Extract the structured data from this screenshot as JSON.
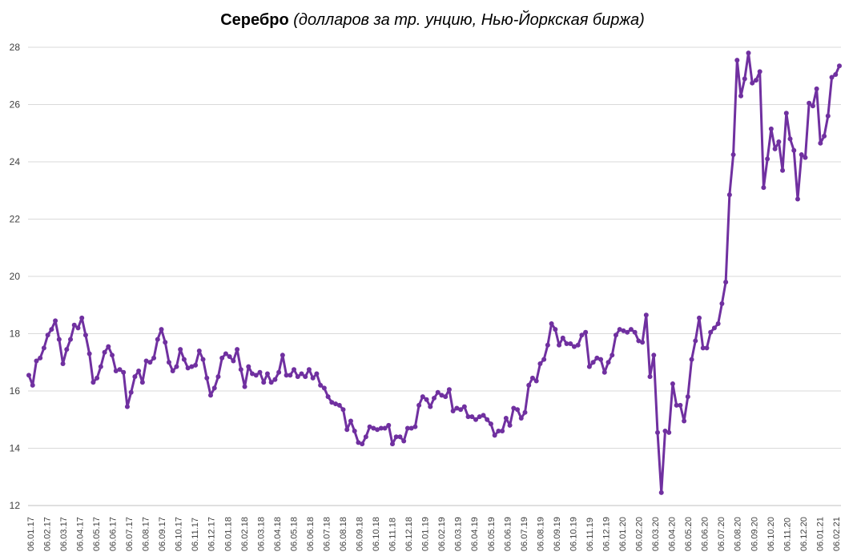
{
  "chart_data": {
    "type": "line",
    "title": "Серебро",
    "subtitle": "(долларов за тр. унцию, Нью-Йоркская биржа)",
    "xlabel": "",
    "ylabel": "",
    "ylim": [
      12,
      28
    ],
    "yticks": [
      "12",
      "14",
      "16",
      "18",
      "20",
      "22",
      "24",
      "26",
      "28"
    ],
    "grid": true,
    "legend": "none",
    "line_color": "#7030A0",
    "x_tick_labels": [
      "06.01.17",
      "06.02.17",
      "06.03.17",
      "06.04.17",
      "06.05.17",
      "06.06.17",
      "06.07.17",
      "06.08.17",
      "06.09.17",
      "06.10.17",
      "06.11.17",
      "06.12.17",
      "06.01.18",
      "06.02.18",
      "06.03.18",
      "06.04.18",
      "06.05.18",
      "06.06.18",
      "06.07.18",
      "06.08.18",
      "06.09.18",
      "06.10.18",
      "06.11.18",
      "06.12.18",
      "06.01.19",
      "06.02.19",
      "06.03.19",
      "06.04.19",
      "06.05.19",
      "06.06.19",
      "06.07.19",
      "06.08.19",
      "06.09.19",
      "06.10.19",
      "06.11.19",
      "06.12.19",
      "06.01.20",
      "06.02.20",
      "06.03.20",
      "06.04.20",
      "06.05.20",
      "06.06.20",
      "06.07.20",
      "06.08.20",
      "06.09.20",
      "06.10.20",
      "06.11.20",
      "06.12.20",
      "06.01.21",
      "06.02.21"
    ],
    "series": [
      {
        "values": [
          16.55,
          16.2,
          17.05,
          17.15,
          17.5,
          17.95,
          18.15,
          18.45,
          17.8,
          16.95,
          17.45,
          17.8,
          18.3,
          18.2,
          18.55,
          17.95,
          17.3,
          16.3,
          16.45,
          16.85,
          17.35,
          17.55,
          17.25,
          16.7,
          16.75,
          16.65,
          15.45,
          15.95,
          16.5,
          16.7,
          16.3,
          17.05,
          17.0,
          17.15,
          17.8,
          18.15,
          17.7,
          17.0,
          16.7,
          16.85,
          17.45,
          17.1,
          16.8,
          16.85,
          16.9,
          17.4,
          17.1,
          16.45,
          15.85,
          16.1,
          16.5,
          17.15,
          17.3,
          17.2,
          17.05,
          17.45,
          16.75,
          16.15,
          16.85,
          16.6,
          16.55,
          16.65,
          16.3,
          16.6,
          16.3,
          16.4,
          16.65,
          17.25,
          16.55,
          16.55,
          16.75,
          16.5,
          16.6,
          16.5,
          16.75,
          16.45,
          16.6,
          16.2,
          16.1,
          15.8,
          15.6,
          15.55,
          15.5,
          15.35,
          14.65,
          14.95,
          14.6,
          14.2,
          14.15,
          14.4,
          14.75,
          14.7,
          14.65,
          14.7,
          14.7,
          14.8,
          14.15,
          14.4,
          14.4,
          14.25,
          14.7,
          14.7,
          14.75,
          15.5,
          15.8,
          15.7,
          15.45,
          15.75,
          15.95,
          15.85,
          15.8,
          16.05,
          15.3,
          15.4,
          15.35,
          15.45,
          15.1,
          15.1,
          15.0,
          15.1,
          15.15,
          15.0,
          14.85,
          14.45,
          14.6,
          14.6,
          15.05,
          14.8,
          15.4,
          15.35,
          15.05,
          15.25,
          16.2,
          16.45,
          16.35,
          16.95,
          17.1,
          17.6,
          18.35,
          18.15,
          17.6,
          17.85,
          17.65,
          17.65,
          17.55,
          17.6,
          17.95,
          18.05,
          16.85,
          17.0,
          17.15,
          17.1,
          16.65,
          17.0,
          17.25,
          17.95,
          18.15,
          18.1,
          18.05,
          18.15,
          18.05,
          17.75,
          17.7,
          18.65,
          16.5,
          17.25,
          14.55,
          12.45,
          14.6,
          14.55,
          16.25,
          15.5,
          15.5,
          14.95,
          15.8,
          17.1,
          17.75,
          18.55,
          17.5,
          17.5,
          18.05,
          18.2,
          18.35,
          19.05,
          19.8,
          22.85,
          24.25,
          27.55,
          26.3,
          26.9,
          27.8,
          26.75,
          26.85,
          27.15,
          23.1,
          24.1,
          25.15,
          24.45,
          24.7,
          23.7,
          25.7,
          24.8,
          24.4,
          22.7,
          24.25,
          24.15,
          26.05,
          25.95,
          26.55,
          24.65,
          24.9,
          25.6,
          26.95,
          27.05,
          27.35
        ]
      }
    ]
  }
}
